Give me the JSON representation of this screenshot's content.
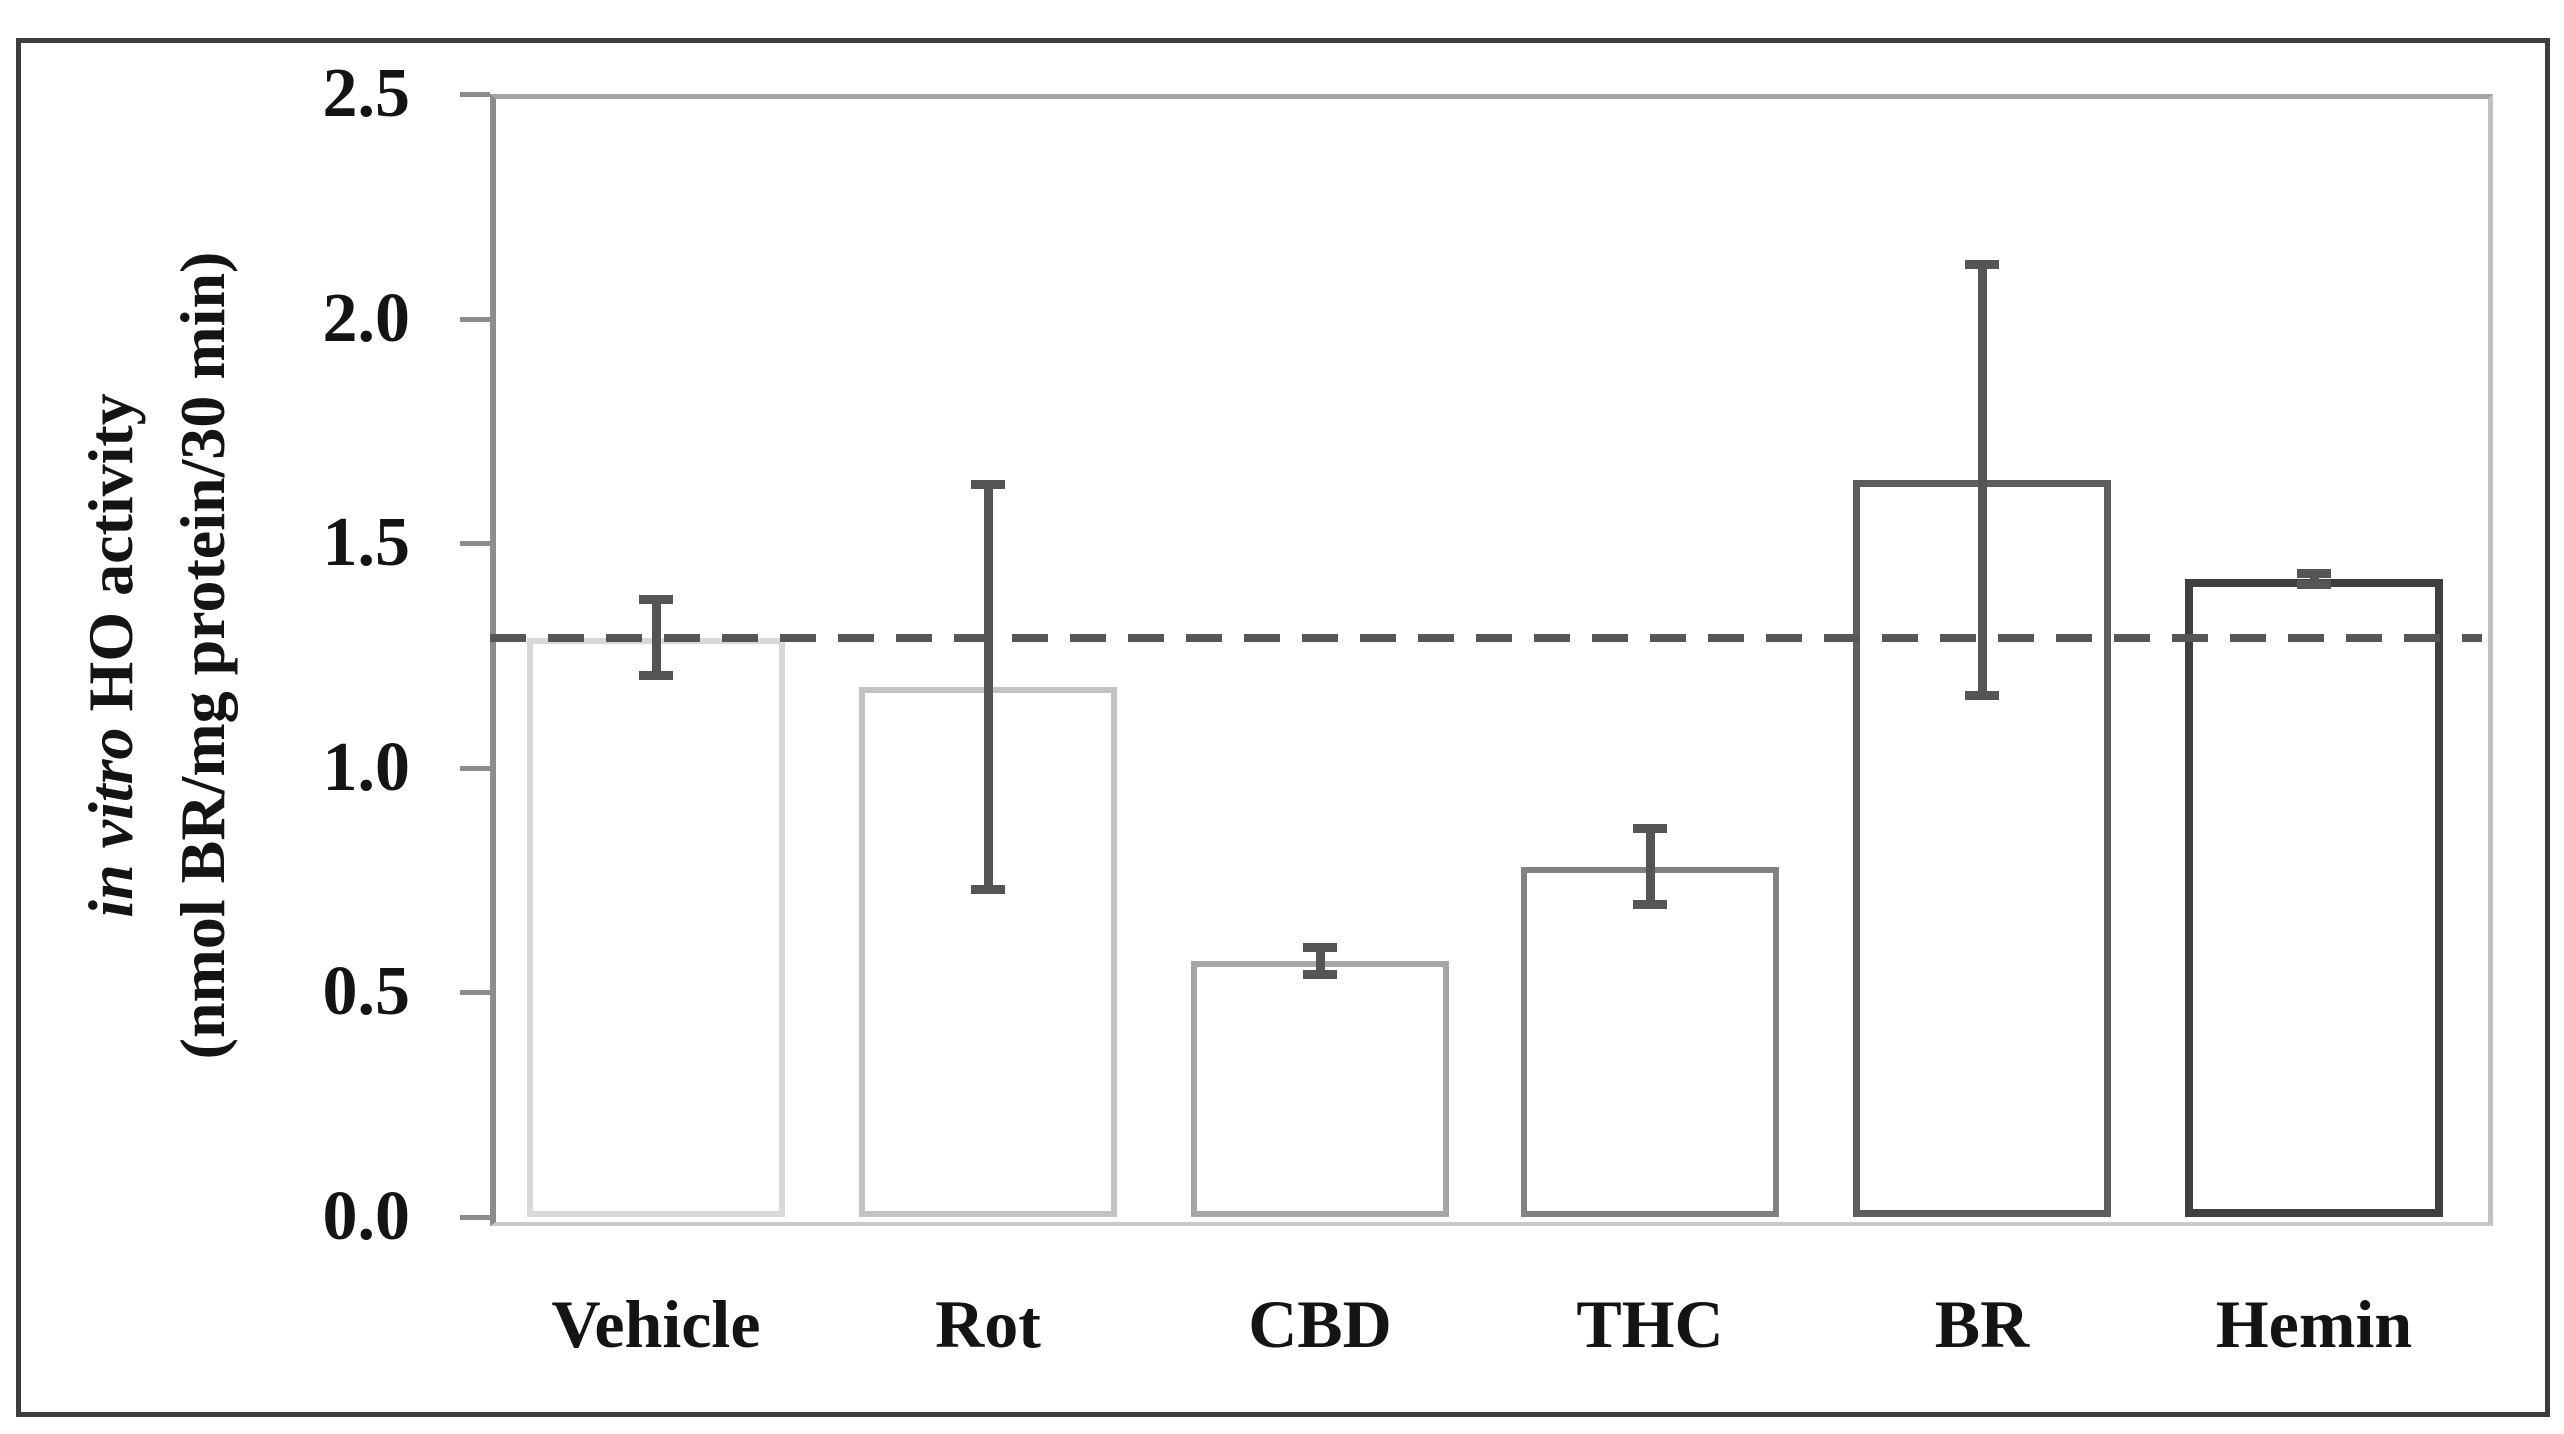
{
  "chart_data": {
    "type": "bar",
    "categories": [
      "Vehicle",
      "Rot",
      "CBD",
      "THC",
      "BR",
      "Hemin"
    ],
    "values": [
      1.29,
      1.18,
      0.57,
      0.78,
      1.64,
      1.42
    ],
    "errors": [
      0.085,
      0.45,
      0.03,
      0.085,
      0.48,
      0.012
    ],
    "reference_line": {
      "value": 1.29,
      "style": "dashed"
    },
    "ylabel_line1_italic": "in vitro",
    "ylabel_line1_rest": " HO activity",
    "ylabel_line2": "(nmol BR/mg protein/30 min)",
    "xlabel": "",
    "title": "",
    "ylim": [
      0.0,
      2.5
    ],
    "ytick_labels": [
      "0.0",
      "0.5",
      "1.0",
      "1.5",
      "2.0",
      "2.5"
    ],
    "ytick_values": [
      0.0,
      0.5,
      1.0,
      1.5,
      2.0,
      2.5
    ],
    "grid": false,
    "legend": false,
    "bar_fill": "#ffffff",
    "bar_stroke_colors": [
      "#d9d9d9",
      "#c3c3c3",
      "#a6a6a6",
      "#828282",
      "#5e5e5e",
      "#3f3f3f"
    ],
    "error_bar_color": "#555555",
    "axis_color": "#8c8c8c",
    "reference_line_color": "#565656",
    "text_color": "#141414"
  }
}
